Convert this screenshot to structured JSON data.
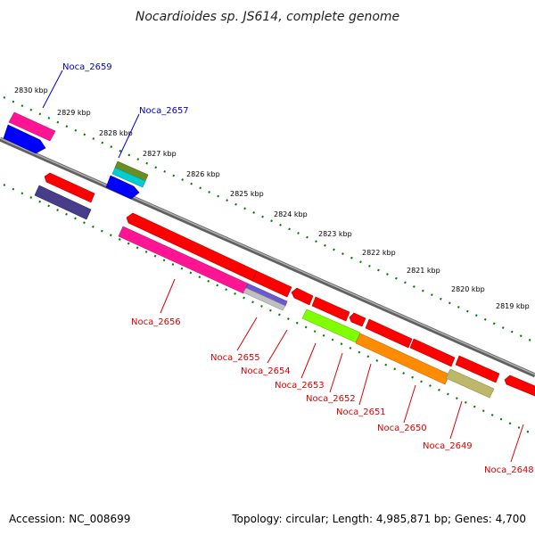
{
  "title": "Nocardioides sp. JS614, complete genome",
  "footer": {
    "accession": "Accession: NC_008699",
    "summary": "Topology: circular; Length: 4,985,871 bp; Genes: 4,700"
  },
  "ticks": [
    "2830 kbp",
    "2829 kbp",
    "2828 kbp",
    "2827 kbp",
    "2826 kbp",
    "2825 kbp",
    "2824 kbp",
    "2823 kbp",
    "2822 kbp",
    "2821 kbp",
    "2820 kbp",
    "2819 kbp"
  ],
  "gene_labels": {
    "noca_2659": "Noca_2659",
    "noca_2657": "Noca_2657",
    "noca_2656": "Noca_2656",
    "noca_2655": "Noca_2655",
    "noca_2654": "Noca_2654",
    "noca_2653": "Noca_2653",
    "noca_2652": "Noca_2652",
    "noca_2651": "Noca_2651",
    "noca_2650": "Noca_2650",
    "noca_2649": "Noca_2649",
    "noca_2648": "Noca_2648"
  },
  "colors": {
    "backbone": "#808080",
    "forward_label": "#0000cc",
    "reverse_label": "#dd0000",
    "cds_red": "#ff0000",
    "pink": "#ff1493",
    "blue": "#0000ff",
    "navy_purple": "#483d8b",
    "olive": "#6b8e23",
    "cyan": "#00ced1",
    "slate": "#6a5acd",
    "silver": "#c0c0c0",
    "lime": "#7fff00",
    "orange": "#ff8c00",
    "khaki": "#bdb76b",
    "tick_green": "#008000"
  }
}
